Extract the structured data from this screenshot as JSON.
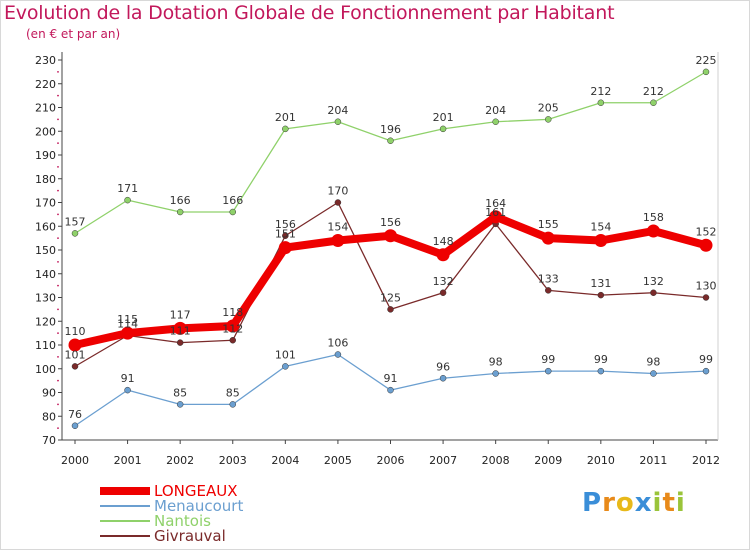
{
  "header": {
    "title": "Evolution de la Dotation Globale de Fonctionnement par Habitant",
    "subtitle": "(en € et par an)"
  },
  "chart_data": {
    "type": "line",
    "title": "Evolution de la Dotation Globale de Fonctionnement par Habitant",
    "subtitle": "(en € et par an)",
    "xlabel": "",
    "ylabel": "",
    "categories": [
      "2000",
      "2001",
      "2002",
      "2003",
      "2004",
      "2005",
      "2006",
      "2007",
      "2008",
      "2009",
      "2010",
      "2011",
      "2012"
    ],
    "ylim": [
      70,
      230
    ],
    "yticks": [
      70,
      80,
      90,
      100,
      110,
      120,
      130,
      140,
      150,
      160,
      170,
      180,
      190,
      200,
      210,
      220,
      230
    ],
    "grid": false,
    "legend_position": "bottom-left",
    "series": [
      {
        "name": "LONGEAUX",
        "color": "#ee0000",
        "values": [
          110,
          115,
          117,
          118,
          151,
          154,
          156,
          148,
          164,
          155,
          154,
          158,
          152
        ]
      },
      {
        "name": "Menaucourt",
        "color": "#6b9fd0",
        "values": [
          76,
          91,
          85,
          85,
          101,
          106,
          91,
          96,
          98,
          99,
          99,
          98,
          99
        ]
      },
      {
        "name": "Nantois",
        "color": "#8fd16a",
        "values": [
          157,
          171,
          166,
          166,
          201,
          204,
          196,
          201,
          204,
          205,
          212,
          212,
          225
        ]
      },
      {
        "name": "Givrauval",
        "color": "#7a2a2a",
        "values": [
          101,
          114,
          111,
          112,
          156,
          170,
          125,
          132,
          161,
          133,
          131,
          132,
          130
        ]
      }
    ]
  },
  "brand": {
    "letters": [
      "P",
      "r",
      "o",
      "x",
      "i",
      "t",
      "i"
    ],
    "colors": [
      "#3a8ed8",
      "#e88a1a",
      "#e8b91a",
      "#3a8ed8",
      "#9ac43a",
      "#e88a1a",
      "#9ac43a"
    ]
  }
}
